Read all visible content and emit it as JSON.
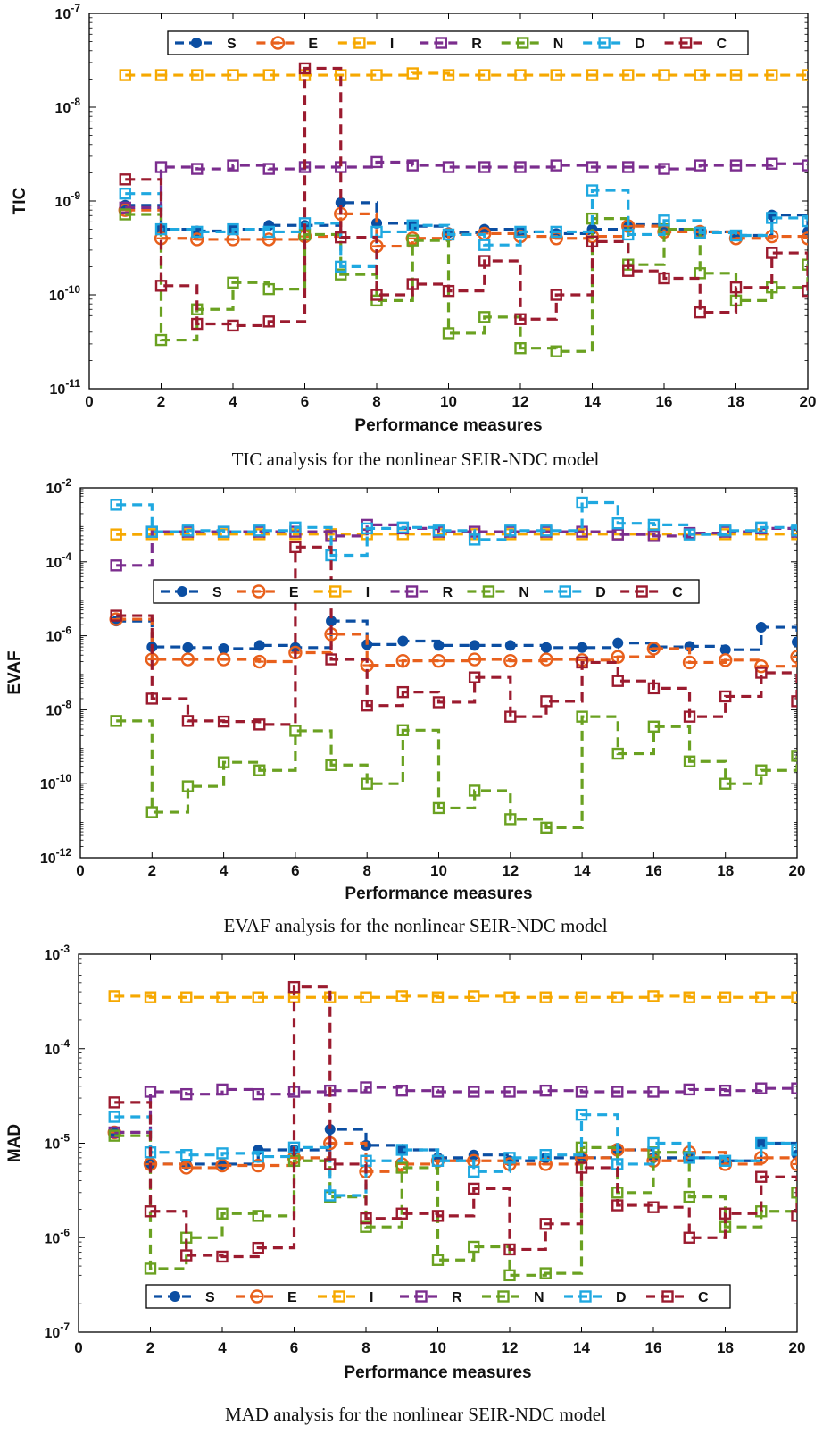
{
  "colors": {
    "S": "#0b4ea2",
    "E": "#e8601c",
    "I": "#f6a800",
    "R": "#7b2d8e",
    "N": "#6aa121",
    "D": "#1fa8e0",
    "C": "#9b1b2f"
  },
  "markers": {
    "S": "circle",
    "E": "circle-bar",
    "I": "square",
    "R": "square",
    "N": "square",
    "D": "square",
    "C": "square"
  },
  "chart_data": [
    {
      "type": "line",
      "title": "",
      "xlabel": "Performance measures",
      "ylabel": "TIC",
      "caption": "TIC analysis for the nonlinear SEIR-NDC model",
      "yscale": "log",
      "xlim": [
        0,
        20
      ],
      "ylim": [
        1e-11,
        1e-07
      ],
      "x_ticks": [
        "0",
        "2",
        "4",
        "6",
        "8",
        "10",
        "12",
        "14",
        "16",
        "18",
        "20"
      ],
      "y_ticks": [
        {
          "base": "10",
          "exp": "-7"
        },
        {
          "base": "10",
          "exp": "-8"
        },
        {
          "base": "10",
          "exp": "-9"
        },
        {
          "base": "10",
          "exp": "-10"
        },
        {
          "base": "10",
          "exp": "-11"
        }
      ],
      "legend_position": "top",
      "line_style": "dashed-step",
      "x": [
        1,
        2,
        3,
        4,
        5,
        6,
        7,
        8,
        9,
        10,
        11,
        12,
        13,
        14,
        15,
        16,
        17,
        18,
        19,
        20
      ],
      "series": [
        {
          "name": "S",
          "values": [
            9e-10,
            5e-10,
            4.8e-10,
            5e-10,
            5.5e-10,
            5.5e-10,
            9.6e-10,
            5.8e-10,
            5.4e-10,
            4.6e-10,
            5e-10,
            4.7e-10,
            4.5e-10,
            5e-10,
            5.6e-10,
            5e-10,
            4.7e-10,
            4.3e-10,
            7.1e-10,
            4.7e-10
          ]
        },
        {
          "name": "E",
          "values": [
            8e-10,
            4e-10,
            3.9e-10,
            3.9e-10,
            3.9e-10,
            4.2e-10,
            7.3e-10,
            3.3e-10,
            4e-10,
            4.4e-10,
            4.5e-10,
            4.2e-10,
            4e-10,
            4.2e-10,
            5.4e-10,
            4.7e-10,
            4.7e-10,
            4e-10,
            4.2e-10,
            4e-10
          ]
        },
        {
          "name": "I",
          "values": [
            2.2e-08,
            2.2e-08,
            2.2e-08,
            2.2e-08,
            2.2e-08,
            2.2e-08,
            2.2e-08,
            2.2e-08,
            2.3e-08,
            2.2e-08,
            2.2e-08,
            2.2e-08,
            2.2e-08,
            2.2e-08,
            2.2e-08,
            2.2e-08,
            2.2e-08,
            2.2e-08,
            2.2e-08,
            2.2e-08
          ]
        },
        {
          "name": "R",
          "values": [
            8.5e-10,
            2.3e-09,
            2.2e-09,
            2.4e-09,
            2.2e-09,
            2.3e-09,
            2.3e-09,
            2.6e-09,
            2.4e-09,
            2.3e-09,
            2.3e-09,
            2.3e-09,
            2.4e-09,
            2.3e-09,
            2.3e-09,
            2.2e-09,
            2.4e-09,
            2.4e-09,
            2.5e-09,
            2.4e-09
          ]
        },
        {
          "name": "N",
          "values": [
            7.2e-10,
            3.3e-11,
            7e-11,
            1.35e-10,
            1.15e-10,
            4.4e-10,
            1.65e-10,
            8.7e-11,
            3.8e-10,
            3.9e-11,
            5.8e-11,
            2.7e-11,
            2.5e-11,
            6.5e-10,
            2.1e-10,
            5e-10,
            1.7e-10,
            8.7e-11,
            1.2e-10,
            2.1e-10
          ]
        },
        {
          "name": "D",
          "values": [
            1.2e-09,
            5e-10,
            4.7e-10,
            5e-10,
            4.7e-10,
            5.8e-10,
            2e-10,
            4.7e-10,
            5.5e-10,
            4.4e-10,
            3.4e-10,
            4.7e-10,
            4.7e-10,
            1.3e-09,
            4.4e-10,
            6.2e-10,
            4.6e-10,
            4.3e-10,
            6.6e-10,
            6.1e-10
          ]
        },
        {
          "name": "C",
          "values": [
            1.7e-09,
            1.25e-10,
            4.9e-11,
            4.7e-11,
            5.2e-11,
            2.6e-08,
            4.1e-10,
            1e-10,
            1.3e-10,
            1.1e-10,
            2.3e-10,
            5.5e-11,
            1e-10,
            3.7e-10,
            1.8e-10,
            1.5e-10,
            6.5e-11,
            1.2e-10,
            2.8e-10,
            1.1e-10
          ]
        }
      ]
    },
    {
      "type": "line",
      "title": "",
      "xlabel": "Performance measures",
      "ylabel": "EVAF",
      "caption": "EVAF analysis for the nonlinear SEIR-NDC model",
      "yscale": "log",
      "xlim": [
        0,
        20
      ],
      "ylim": [
        1e-12,
        0.01
      ],
      "x_ticks": [
        "0",
        "2",
        "4",
        "6",
        "8",
        "10",
        "12",
        "14",
        "16",
        "18",
        "20"
      ],
      "y_ticks": [
        {
          "base": "10",
          "exp": "-2"
        },
        {
          "base": "10",
          "exp": "-4"
        },
        {
          "base": "10",
          "exp": "-6"
        },
        {
          "base": "10",
          "exp": "-8"
        },
        {
          "base": "10",
          "exp": "-10"
        },
        {
          "base": "10",
          "exp": "-12"
        }
      ],
      "legend_position": "upper-middle",
      "line_style": "dashed-step",
      "x": [
        1,
        2,
        3,
        4,
        5,
        6,
        7,
        8,
        9,
        10,
        11,
        12,
        13,
        14,
        15,
        16,
        17,
        18,
        19,
        20
      ],
      "series": [
        {
          "name": "S",
          "values": [
            2.5e-06,
            5e-07,
            4.8e-07,
            4.5e-07,
            5.5e-07,
            4.8e-07,
            2.5e-06,
            5.8e-07,
            7.2e-07,
            5.5e-07,
            5.5e-07,
            5.5e-07,
            4.8e-07,
            4.8e-07,
            6.4e-07,
            5e-07,
            5.2e-07,
            4.2e-07,
            1.7e-06,
            6.8e-07
          ]
        },
        {
          "name": "E",
          "values": [
            2.8e-06,
            2.3e-07,
            2.3e-07,
            2.3e-07,
            2e-07,
            3.5e-07,
            1.1e-06,
            1.6e-07,
            2.1e-07,
            2.1e-07,
            2.3e-07,
            2.1e-07,
            2.3e-07,
            2.2e-07,
            2.7e-07,
            4.5e-07,
            1.9e-07,
            2.2e-07,
            1.5e-07,
            2.7e-07
          ]
        },
        {
          "name": "I",
          "values": [
            0.00055,
            0.00056,
            0.00056,
            0.00056,
            0.00056,
            0.00056,
            0.00056,
            0.00056,
            0.00056,
            0.00056,
            0.00056,
            0.00056,
            0.00056,
            0.00056,
            0.00056,
            0.00056,
            0.00056,
            0.00056,
            0.00056,
            0.00056
          ]
        },
        {
          "name": "R",
          "values": [
            8e-05,
            0.00065,
            0.00065,
            0.00065,
            0.00065,
            0.00065,
            0.0005,
            0.001,
            0.0008,
            0.00065,
            0.00065,
            0.00065,
            0.00065,
            0.00065,
            0.00055,
            0.0005,
            0.0006,
            0.00065,
            0.0008,
            0.00065
          ]
        },
        {
          "name": "N",
          "values": [
            5e-09,
            1.7e-11,
            8.5e-11,
            3.8e-10,
            2.3e-10,
            2.7e-09,
            3.2e-10,
            1e-10,
            2.8e-09,
            2.2e-11,
            6.5e-11,
            1.1e-11,
            6.5e-12,
            6.5e-09,
            6.5e-10,
            3.5e-09,
            4e-10,
            1e-10,
            2.3e-10,
            5.7e-10
          ]
        },
        {
          "name": "D",
          "values": [
            0.0035,
            0.00065,
            0.0007,
            0.00065,
            0.0007,
            0.00085,
            0.00015,
            0.0008,
            0.00085,
            0.0007,
            0.0004,
            0.0007,
            0.0007,
            0.004,
            0.0011,
            0.001,
            0.00055,
            0.0007,
            0.00085,
            0.0007
          ]
        },
        {
          "name": "C",
          "values": [
            3.5e-06,
            2e-08,
            5e-09,
            4.8e-09,
            4e-09,
            0.00025,
            2.3e-07,
            1.3e-08,
            3e-08,
            1.6e-08,
            7.5e-08,
            6.5e-09,
            1.7e-08,
            1.9e-07,
            6e-08,
            3.8e-08,
            6.5e-09,
            2.3e-08,
            1e-07,
            1.7e-08
          ]
        }
      ]
    },
    {
      "type": "line",
      "title": "",
      "xlabel": "Performance measures",
      "ylabel": "MAD",
      "caption": "MAD analysis for the nonlinear SEIR-NDC model",
      "yscale": "log",
      "xlim": [
        0,
        20
      ],
      "ylim": [
        1e-07,
        0.001
      ],
      "x_ticks": [
        "0",
        "2",
        "4",
        "6",
        "8",
        "10",
        "12",
        "14",
        "16",
        "18",
        "20"
      ],
      "y_ticks": [
        {
          "base": "10",
          "exp": "-3"
        },
        {
          "base": "10",
          "exp": "-4"
        },
        {
          "base": "10",
          "exp": "-5"
        },
        {
          "base": "10",
          "exp": "-6"
        },
        {
          "base": "10",
          "exp": "-7"
        }
      ],
      "legend_position": "bottom",
      "line_style": "dashed-step",
      "x": [
        1,
        2,
        3,
        4,
        5,
        6,
        7,
        8,
        9,
        10,
        11,
        12,
        13,
        14,
        15,
        16,
        17,
        18,
        19,
        20
      ],
      "series": [
        {
          "name": "S",
          "values": [
            1.3e-05,
            6e-06,
            6e-06,
            6e-06,
            8.5e-06,
            8.5e-06,
            1.4e-05,
            9.5e-06,
            8.5e-06,
            7e-06,
            7.5e-06,
            6.5e-06,
            7e-06,
            7e-06,
            8.5e-06,
            7e-06,
            7e-06,
            6.5e-06,
            1e-05,
            7.5e-06
          ]
        },
        {
          "name": "E",
          "values": [
            1.3e-05,
            6e-06,
            5.5e-06,
            5.8e-06,
            5.8e-06,
            7e-06,
            1e-05,
            5e-06,
            6e-06,
            6.5e-06,
            6.5e-06,
            6e-06,
            6e-06,
            7e-06,
            8.5e-06,
            6.5e-06,
            8e-06,
            6e-06,
            7e-06,
            6e-06
          ]
        },
        {
          "name": "I",
          "values": [
            0.00036,
            0.00035,
            0.00035,
            0.00035,
            0.00035,
            0.00035,
            0.00035,
            0.00035,
            0.00036,
            0.00035,
            0.00036,
            0.00035,
            0.00035,
            0.00035,
            0.00035,
            0.00036,
            0.00035,
            0.00035,
            0.00035,
            0.00035
          ]
        },
        {
          "name": "R",
          "values": [
            1.3e-05,
            3.5e-05,
            3.3e-05,
            3.7e-05,
            3.3e-05,
            3.5e-05,
            3.6e-05,
            3.9e-05,
            3.6e-05,
            3.5e-05,
            3.5e-05,
            3.5e-05,
            3.6e-05,
            3.5e-05,
            3.5e-05,
            3.5e-05,
            3.7e-05,
            3.6e-05,
            3.8e-05,
            3.8e-05
          ]
        },
        {
          "name": "N",
          "values": [
            1.2e-05,
            4.7e-07,
            1e-06,
            1.8e-06,
            1.7e-06,
            6.5e-06,
            2.7e-06,
            1.3e-06,
            5.5e-06,
            5.8e-07,
            8e-07,
            4e-07,
            4.2e-07,
            9e-06,
            3e-06,
            8e-06,
            2.7e-06,
            1.3e-06,
            1.9e-06,
            3e-06
          ]
        },
        {
          "name": "D",
          "values": [
            1.9e-05,
            8e-06,
            7.5e-06,
            7.8e-06,
            7.2e-06,
            9e-06,
            2.8e-06,
            6.5e-06,
            8.5e-06,
            6.5e-06,
            5e-06,
            7e-06,
            7.5e-06,
            2e-05,
            6e-06,
            1e-05,
            7e-06,
            6.5e-06,
            1e-05,
            8.5e-06
          ]
        },
        {
          "name": "C",
          "values": [
            2.7e-05,
            1.9e-06,
            6.5e-07,
            6.3e-07,
            7.8e-07,
            0.00045,
            6e-06,
            1.6e-06,
            1.8e-06,
            1.7e-06,
            3.3e-06,
            7.5e-07,
            1.4e-06,
            5.5e-06,
            2.2e-06,
            2.1e-06,
            1e-06,
            1.8e-06,
            4.4e-06,
            1.7e-06
          ]
        }
      ]
    }
  ]
}
